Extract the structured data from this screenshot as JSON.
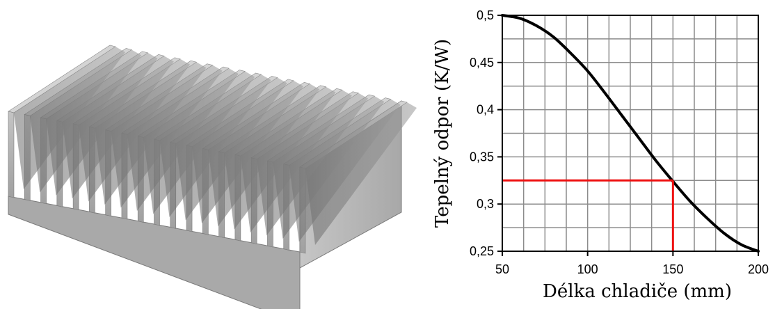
{
  "chart_data": {
    "type": "line",
    "title": "",
    "xlabel": "Délka chladiče (mm)",
    "ylabel": "Tepelný odpor (K/W)",
    "xlim": [
      50,
      200
    ],
    "ylim": [
      0.25,
      0.5
    ],
    "x_ticks": [
      50,
      100,
      150,
      200
    ],
    "x_tick_labels": [
      "50",
      "100",
      "150",
      "200"
    ],
    "y_ticks": [
      0.25,
      0.3,
      0.35,
      0.4,
      0.45,
      0.5
    ],
    "y_tick_labels": [
      "0,25",
      "0,3",
      "0,35",
      "0,4",
      "0,45",
      "0,5"
    ],
    "grid": true,
    "series": [
      {
        "color": "#000000",
        "x": [
          50,
          60,
          70,
          80,
          90,
          100,
          110,
          120,
          130,
          140,
          150,
          160,
          170,
          180,
          190,
          200
        ],
        "y": [
          0.5,
          0.497,
          0.489,
          0.477,
          0.46,
          0.441,
          0.418,
          0.394,
          0.37,
          0.346,
          0.324,
          0.303,
          0.285,
          0.269,
          0.257,
          0.25
        ]
      }
    ],
    "annotation": {
      "color": "#ee1111",
      "x": 150,
      "y": 0.325
    }
  },
  "illustration": {
    "fill_color": "#b4b4b4",
    "fin_count": 19
  }
}
